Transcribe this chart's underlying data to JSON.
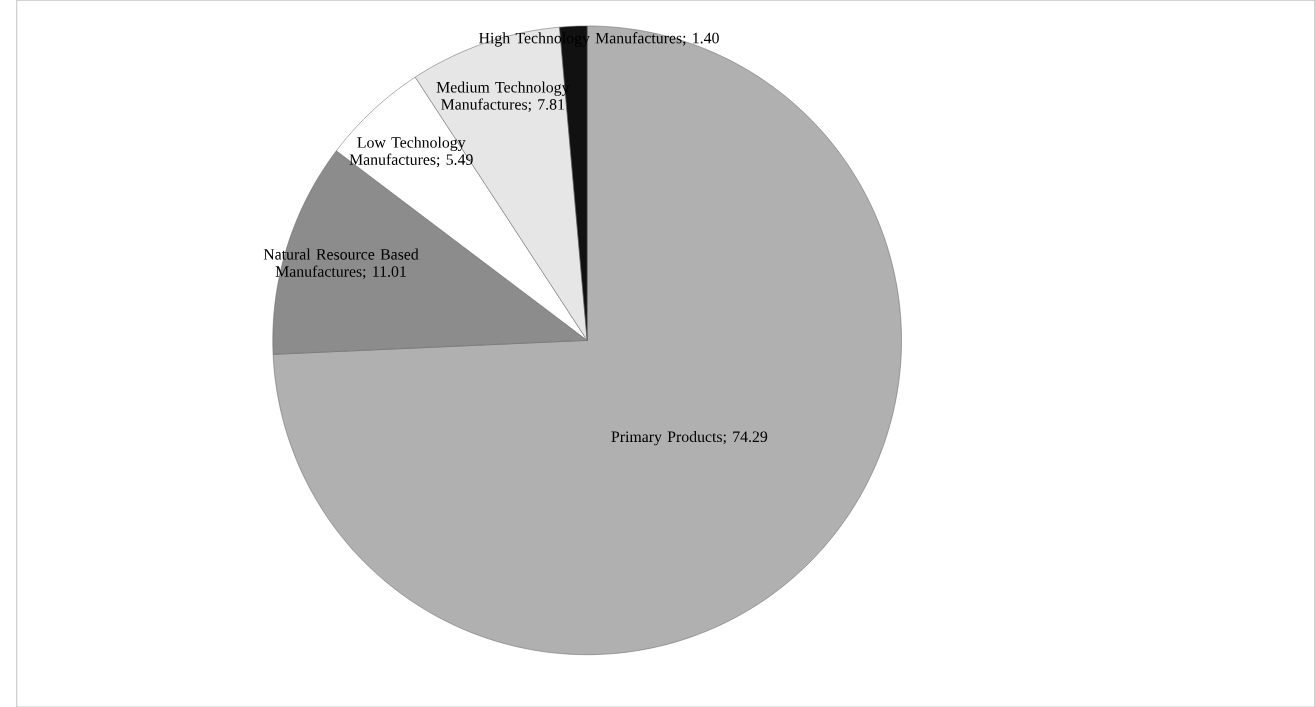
{
  "chart_data": {
    "type": "pie",
    "categories": [
      "Primary Products",
      "Natural Resource Based Manufactures",
      "Low Technology Manufactures",
      "Medium Technology Manufactures",
      "High Technology Manufactures"
    ],
    "values": [
      74.29,
      11.01,
      5.49,
      7.81,
      1.4
    ],
    "value_labels": [
      "; 74.29",
      "; 11.01",
      "; 5.49",
      "; 7.81",
      "; 1.40"
    ],
    "colors": [
      "#b0b0b0",
      "#8c8c8c",
      "#ffffff",
      "#e6e6e6",
      "#111111"
    ]
  }
}
